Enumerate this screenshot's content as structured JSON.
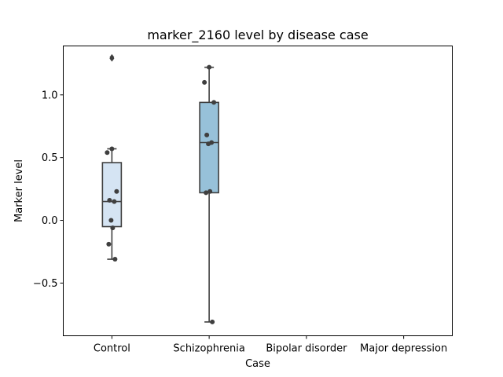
{
  "chart_data": {
    "type": "box",
    "title": "marker_2160 level by disease case",
    "xlabel": "Case",
    "ylabel": "Marker level",
    "categories": [
      "Control",
      "Schizophrenia",
      "Bipolar disorder",
      "Major depression"
    ],
    "ylim": [
      -0.92,
      1.39
    ],
    "yticks": [
      -0.5,
      0.0,
      0.5,
      1.0
    ],
    "ytick_labels": [
      "−0.5",
      "0.0",
      "0.5",
      "1.0"
    ],
    "grid": false,
    "legend": "none",
    "boxes": [
      {
        "category": "Control",
        "color": "#d5e4f3",
        "whisker_low": -0.31,
        "q1": -0.05,
        "median": 0.15,
        "q3": 0.46,
        "whisker_high": 0.57,
        "outliers": [
          1.29,
          1.3
        ],
        "points": [
          0.57,
          0.54,
          0.23,
          0.16,
          0.15,
          0.0,
          -0.06,
          -0.19,
          -0.31
        ]
      },
      {
        "category": "Schizophrenia",
        "color": "#97c1d9",
        "whisker_low": -0.81,
        "q1": 0.22,
        "median": 0.62,
        "q3": 0.94,
        "whisker_high": 1.22,
        "outliers": [],
        "points": [
          1.22,
          1.1,
          0.94,
          0.68,
          0.62,
          0.61,
          0.23,
          0.22,
          -0.81
        ]
      },
      {
        "category": "Bipolar disorder",
        "color": "#5f9fc9",
        "whisker_low": null,
        "q1": null,
        "median": null,
        "q3": null,
        "whisker_high": null,
        "outliers": [],
        "points": []
      },
      {
        "category": "Major depression",
        "color": "#2e6fae",
        "whisker_low": null,
        "q1": null,
        "median": null,
        "q3": null,
        "whisker_high": null,
        "outliers": [],
        "points": []
      }
    ]
  }
}
